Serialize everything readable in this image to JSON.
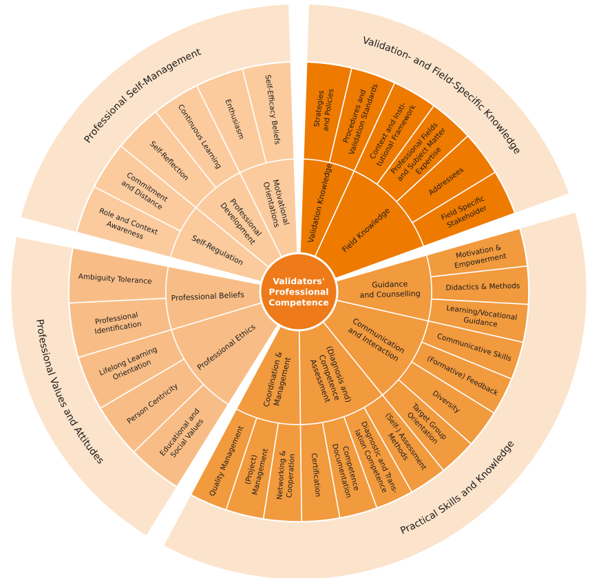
{
  "center": {
    "lines": [
      "Validators'",
      "Professional",
      "Competence"
    ],
    "color": "#EE7A1A"
  },
  "quadrants": [
    {
      "name": "Validation- and Field-Specific Knowledge",
      "band_color": "#FCE3CB",
      "seg_color": "#EE7A00",
      "text_color": "#1a1a1a",
      "groups": [
        {
          "lines": [
            "Validation Knowledge"
          ],
          "items": [
            [
              "Strategies",
              "and Policies"
            ],
            [
              "Procedures and",
              "Validation Standards"
            ]
          ]
        },
        {
          "lines": [
            "Field Knowledge"
          ],
          "items": [
            [
              "Context and Insti-",
              "tutional Framework"
            ],
            [
              "Professional Fields",
              "and Subject Matter",
              "Expertise"
            ],
            [
              "Addressees"
            ],
            [
              "Field Specific",
              "Stakeholder"
            ]
          ]
        }
      ]
    },
    {
      "name": "Practical Skills and Knowledge",
      "band_color": "#FCE3CB",
      "seg_color": "#F29A3E",
      "text_color": "#1a1a1a",
      "groups": [
        {
          "lines": [
            "Guidance",
            "and Counselling"
          ],
          "items": [
            [
              "Motivation &",
              "Empowerment"
            ],
            [
              "Didactics & Methods"
            ],
            [
              "Learning/Vocational",
              "Guidance"
            ]
          ]
        },
        {
          "lines": [
            "Communication",
            "and Interaction"
          ],
          "items": [
            [
              "Communicative Skills"
            ],
            [
              "(Formative) Feedback"
            ],
            [
              "Diversity"
            ],
            [
              "Target Group",
              "Orientation"
            ]
          ]
        },
        {
          "lines": [
            "(Diagnosis and)",
            "Competence",
            "Assessment"
          ],
          "items": [
            [
              "(Self-) Assessment",
              "Methods"
            ],
            [
              "Diagnostic and Trans-",
              "lation Competence"
            ],
            [
              "Competence",
              "Documentation"
            ],
            [
              "Certification"
            ]
          ]
        },
        {
          "lines": [
            "Coordination &",
            "Management"
          ],
          "items": [
            [
              "Networking &",
              "Cooperation"
            ],
            [
              "(Project)",
              "Management"
            ],
            [
              "Quality Management"
            ]
          ]
        }
      ]
    },
    {
      "name": "Professional Values and Attitudes",
      "band_color": "#FCE3CB",
      "seg_color": "#F8BD86",
      "text_color": "#1a1a1a",
      "groups": [
        {
          "lines": [
            "Professional Ethics"
          ],
          "items": [
            [
              "Educational and",
              "Social Values"
            ],
            [
              "Person Centricity"
            ],
            [
              "Lifelong Learning",
              "Orientation"
            ]
          ]
        },
        {
          "lines": [
            "Professional Beliefs"
          ],
          "items": [
            [
              "Professional",
              "Identification"
            ],
            [
              "Ambiguity Tolerance"
            ]
          ]
        }
      ]
    },
    {
      "name": "Professional Self-Management",
      "band_color": "#FCE3CB",
      "seg_color": "#FBCB9E",
      "text_color": "#1a1a1a",
      "groups": [
        {
          "lines": [
            "Self-Regulation"
          ],
          "items": [
            [
              "Role and Context",
              "Awareness"
            ],
            [
              "Commitment",
              "and Distance"
            ]
          ]
        },
        {
          "lines": [
            "Professional",
            "Development"
          ],
          "items": [
            [
              "Self-Reflection"
            ],
            [
              "Continuous Learning"
            ]
          ]
        },
        {
          "lines": [
            "Motivational",
            "Orientations"
          ],
          "items": [
            [
              "Enthusiasm"
            ],
            [
              "Self-Efficacy Beliefs"
            ]
          ]
        }
      ]
    }
  ]
}
